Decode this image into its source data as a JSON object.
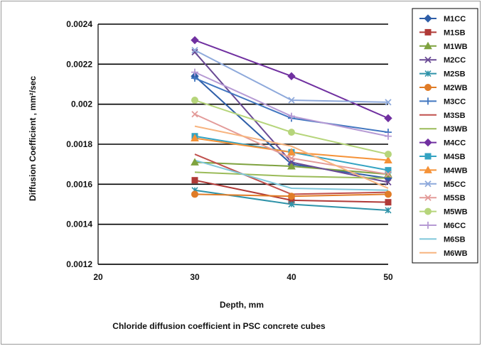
{
  "chart_data": {
    "type": "line",
    "title": "",
    "xlabel": "Depth, mm",
    "ylabel": "Diffusion Coefficient , mm²/sec",
    "caption": "Chloride diffusion coefficient in PSC concrete cubes",
    "x": [
      30,
      40,
      50
    ],
    "xlim": [
      20,
      50
    ],
    "ylim": [
      0.0012,
      0.0024
    ],
    "xticks": [
      "20",
      "30",
      "40",
      "50"
    ],
    "yticks": [
      "0.0012",
      "0.0014",
      "0.0016",
      "0.0018",
      "0.002",
      "0.0022",
      "0.0024"
    ],
    "grid": "horizontal",
    "legend_position": "right",
    "series": [
      {
        "name": "M1CC",
        "color": "#2e5ea8",
        "marker": "diamond",
        "values": [
          0.00214,
          0.0017,
          0.00163
        ]
      },
      {
        "name": "M1SB",
        "color": "#b03a37",
        "marker": "square",
        "values": [
          0.00162,
          0.00152,
          0.00151
        ]
      },
      {
        "name": "M1WB",
        "color": "#7ea23f",
        "marker": "triangle",
        "values": [
          0.00171,
          0.00169,
          0.00165
        ]
      },
      {
        "name": "M2CC",
        "color": "#6a4a95",
        "marker": "x",
        "values": [
          0.00226,
          0.00171,
          0.00161
        ]
      },
      {
        "name": "M2SB",
        "color": "#2f93a9",
        "marker": "xbar",
        "values": [
          0.00157,
          0.0015,
          0.00147
        ]
      },
      {
        "name": "M2WB",
        "color": "#e07c27",
        "marker": "circle",
        "values": [
          0.00155,
          0.00154,
          0.00155
        ]
      },
      {
        "name": "M3CC",
        "color": "#4277c0",
        "marker": "plus",
        "values": [
          0.00213,
          0.00193,
          0.00186
        ]
      },
      {
        "name": "M3SB",
        "color": "#c0504d",
        "marker": "none",
        "values": [
          0.00175,
          0.00155,
          0.00156
        ]
      },
      {
        "name": "M3WB",
        "color": "#9bbb59",
        "marker": "none",
        "values": [
          0.00166,
          0.00164,
          0.00163
        ]
      },
      {
        "name": "M4CC",
        "color": "#7030a0",
        "marker": "diamond",
        "values": [
          0.00232,
          0.00214,
          0.00193
        ]
      },
      {
        "name": "M4SB",
        "color": "#33a3c2",
        "marker": "square",
        "values": [
          0.00184,
          0.00176,
          0.00167
        ]
      },
      {
        "name": "M4WB",
        "color": "#f59237",
        "marker": "triangle",
        "values": [
          0.00183,
          0.00176,
          0.00172
        ]
      },
      {
        "name": "M5CC",
        "color": "#8ea9db",
        "marker": "x",
        "values": [
          0.00227,
          0.00202,
          0.00201
        ]
      },
      {
        "name": "M5SB",
        "color": "#e39b99",
        "marker": "x",
        "values": [
          0.00195,
          0.00173,
          0.00165
        ]
      },
      {
        "name": "M5WB",
        "color": "#b6d57b",
        "marker": "circle",
        "values": [
          0.00202,
          0.00186,
          0.00175
        ]
      },
      {
        "name": "M6CC",
        "color": "#b69ad4",
        "marker": "plus",
        "values": [
          0.00216,
          0.00194,
          0.00184
        ]
      },
      {
        "name": "M6SB",
        "color": "#7fc7da",
        "marker": "none",
        "values": [
          0.00172,
          0.00158,
          0.00157
        ]
      },
      {
        "name": "M6WB",
        "color": "#f7b47f",
        "marker": "none",
        "values": [
          0.00189,
          0.00179,
          0.00158
        ]
      }
    ]
  }
}
